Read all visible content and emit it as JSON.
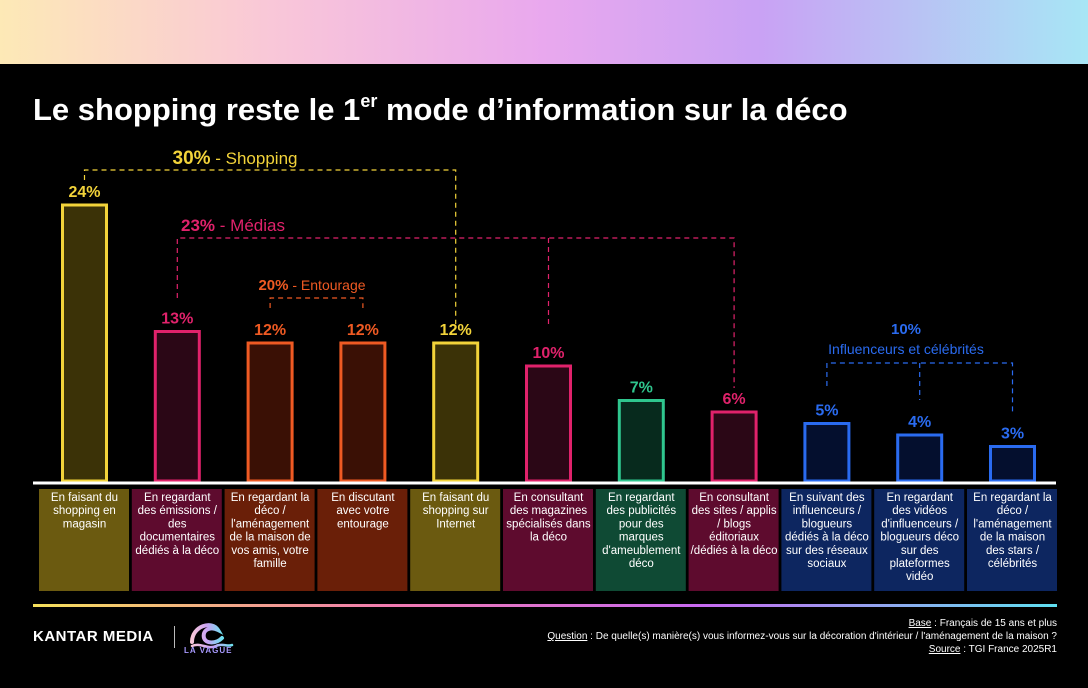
{
  "header": {
    "title_before": "Le shopping reste le 1",
    "title_sup": "er",
    "title_after": " mode d’information sur la déco"
  },
  "chart_data": {
    "type": "bar",
    "ylim": [
      0,
      25
    ],
    "values_unit": "%",
    "bars": [
      {
        "value": 24,
        "label": "24%",
        "category": "En faisant du shopping en magasin",
        "group": "shopping"
      },
      {
        "value": 13,
        "label": "13%",
        "category": "En regardant des émissions / des documentaires dédiés à la déco",
        "group": "medias"
      },
      {
        "value": 12,
        "label": "12%",
        "category": "En regardant la déco / l'aménagement de la maison de vos amis, votre famille",
        "group": "entourage"
      },
      {
        "value": 12,
        "label": "12%",
        "category": "En discutant avec votre entourage",
        "group": "entourage"
      },
      {
        "value": 12,
        "label": "12%",
        "category": "En faisant du shopping sur Internet",
        "group": "shopping"
      },
      {
        "value": 10,
        "label": "10%",
        "category": "En consultant des magazines spécialisés dans la déco",
        "group": "medias"
      },
      {
        "value": 7,
        "label": "7%",
        "category": "En regardant des publicités pour des marques d'ameublement déco",
        "group": "publicite"
      },
      {
        "value": 6,
        "label": "6%",
        "category": "En consultant des sites / applis / blogs éditoriaux dédiés à la déco",
        "group": "medias"
      },
      {
        "value": 5,
        "label": "5%",
        "category": "En suivant des influenceurs / blogueurs dédiés à la déco sur des réseaux sociaux",
        "group": "influenceurs"
      },
      {
        "value": 4,
        "label": "4%",
        "category": "En regardant des vidéos d'influenceurs / blogueurs déco sur des plateformes vidéo",
        "group": "influenceurs"
      },
      {
        "value": 3,
        "label": "3%",
        "category": "En regardant la déco / l'aménagement de la maison des stars / célébrités",
        "group": "influenceurs"
      }
    ],
    "category_lines": [
      [
        "En faisant du",
        "shopping en",
        "magasin"
      ],
      [
        "En regardant",
        "des émissions /",
        "des",
        "documentaires",
        "dédiés à la déco"
      ],
      [
        "En regardant la",
        "déco /",
        "l'aménagement",
        "de la maison de",
        "vos amis, votre",
        "famille"
      ],
      [
        "En discutant",
        "avec votre",
        "entourage"
      ],
      [
        "En faisant du",
        "shopping sur",
        "Internet"
      ],
      [
        "En consultant",
        "des magazines",
        "spécialisés dans",
        "la déco"
      ],
      [
        "En regardant",
        "des publicités",
        "pour des",
        "marques",
        "d'ameublement",
        "déco"
      ],
      [
        "En consultant",
        "des sites / applis",
        "/ blogs",
        "éditoriaux",
        "/dédiés à la déco"
      ],
      [
        "En suivant des",
        "influenceurs /",
        "blogueurs",
        "dédiés à la déco",
        "sur des réseaux",
        "sociaux"
      ],
      [
        "En regardant",
        "des vidéos",
        "d'influenceurs /",
        "blogueurs déco",
        "sur des",
        "plateformes",
        "vidéo"
      ],
      [
        "En regardant la",
        "déco /",
        "l'aménagement",
        "de la maison",
        "des stars /",
        "célébrités"
      ]
    ],
    "groups": {
      "shopping": {
        "total": "30%",
        "name": "Shopping",
        "color": "#f2d33a",
        "fill": "#3b3207",
        "box": "#6b5a10"
      },
      "medias": {
        "total": "23%",
        "name": "Médias",
        "color": "#e0226b",
        "fill": "#2b0716",
        "box": "#5e0b2e"
      },
      "entourage": {
        "total": "20%",
        "name": "Entourage",
        "color": "#ef5a23",
        "fill": "#3a1005",
        "box": "#6a1f08"
      },
      "publicite": {
        "color": "#2fc68e",
        "fill": "#072a1d",
        "box": "#0f4a34"
      },
      "influenceurs": {
        "total": "10%",
        "name": "Influenceurs et célébrités",
        "color": "#2a6bf0",
        "fill": "#040f2e",
        "box": "#0d2660"
      }
    }
  },
  "footer": {
    "brand": "KANTAR MEDIA",
    "brand2": "LA VAGUE",
    "base_label": "Base",
    "base_text": " : Français de 15 ans et plus",
    "question_label": "Question",
    "question_text": " : De quelle(s) manière(s) vous informez-vous sur la décoration d'intérieur / l'aménagement de la maison ?",
    "source_label": "Source",
    "source_text": " : TGI France 2025R1"
  }
}
